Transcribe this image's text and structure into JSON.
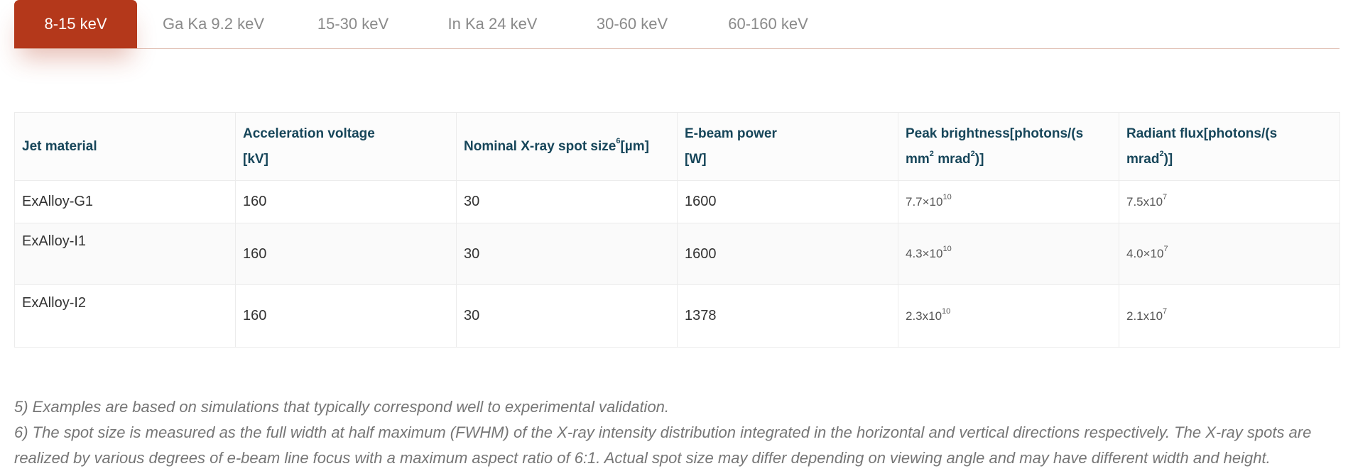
{
  "tabs": [
    {
      "label": "8-15 keV",
      "active": true
    },
    {
      "label": "Ga Ka 9.2 keV",
      "active": false
    },
    {
      "label": "15-30 keV",
      "active": false
    },
    {
      "label": "In Ka 24 keV",
      "active": false
    },
    {
      "label": "30-60 keV",
      "active": false
    },
    {
      "label": "60-160 keV",
      "active": false
    }
  ],
  "table": {
    "headers": {
      "material": "Jet material",
      "voltage_a": "Acceleration voltage",
      "voltage_b": "[kV]",
      "spot_a": "Nominal X-ray spot size",
      "spot_sup": "6",
      "spot_b": "[µm]",
      "power_a": "E-beam power",
      "power_b": "[W]",
      "brightness_a": "Peak brightness[photons/(s",
      "brightness_b": "mm",
      "brightness_sup1": "2",
      "brightness_c": " mrad",
      "brightness_sup2": "2",
      "brightness_d": ")]",
      "flux_a": "Radiant flux[photons/(s",
      "flux_b": "mrad",
      "flux_sup": "2",
      "flux_c": ")]"
    },
    "rows": [
      {
        "material": "ExAlloy-G1",
        "voltage": "160",
        "spot": "30",
        "power": "1600",
        "brightness_base": "7.7×10",
        "brightness_exp": "10",
        "flux_base": "7.5x10",
        "flux_exp": "7"
      },
      {
        "material": "ExAlloy-I1",
        "voltage": "160",
        "spot": "30",
        "power": "1600",
        "brightness_base": "4.3×10",
        "brightness_exp": "10",
        "flux_base": "4.0×10",
        "flux_exp": "7"
      },
      {
        "material": "ExAlloy-I2",
        "voltage": "160",
        "spot": "30",
        "power": "1378",
        "brightness_base": "2.3x10",
        "brightness_exp": "10",
        "flux_base": "2.1x10",
        "flux_exp": "7"
      }
    ]
  },
  "notes": {
    "note5": "5) Examples are based on simulations that typically correspond well to experimental validation.",
    "note6": "6) The spot size is measured as the full width at half maximum (FWHM) of the X-ray intensity distribution integrated in the horizontal and vertical directions respectively. The X-ray spots are realized by various degrees of e-beam line focus with a maximum aspect ratio of 6:1. Actual spot size may differ depending on viewing angle and may have different width and height."
  },
  "colors": {
    "accent": "#b4381b",
    "header_text": "#17465a",
    "tab_inactive": "#8a8a8a",
    "note_text": "#767676"
  }
}
